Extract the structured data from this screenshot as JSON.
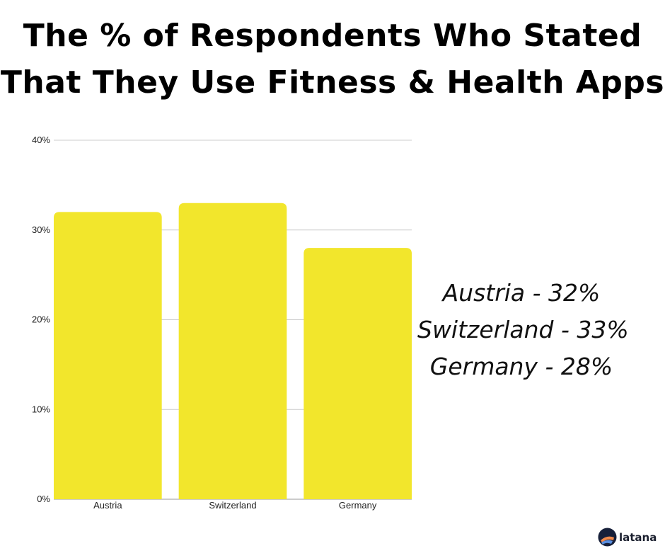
{
  "title_lines": [
    "The % of Respondents Who Stated",
    "That They Use Fitness & Health Apps"
  ],
  "chart_data": {
    "type": "bar",
    "categories": [
      "Austria",
      "Switzerland",
      "Germany"
    ],
    "values": [
      32,
      33,
      28
    ],
    "ylim": [
      0,
      40
    ],
    "yticks": [
      0,
      10,
      20,
      30,
      40
    ],
    "ytick_labels": [
      "0%",
      "10%",
      "20%",
      "30%",
      "40%"
    ],
    "grid": true,
    "bar_color": "#f2e62c",
    "grid_color": "#cccccc"
  },
  "annotations": [
    "Austria - 32%",
    "Switzerland - 33%",
    "Germany - 28%"
  ],
  "brand": {
    "name": "latana",
    "logo_icon": "latana-logo-icon"
  }
}
